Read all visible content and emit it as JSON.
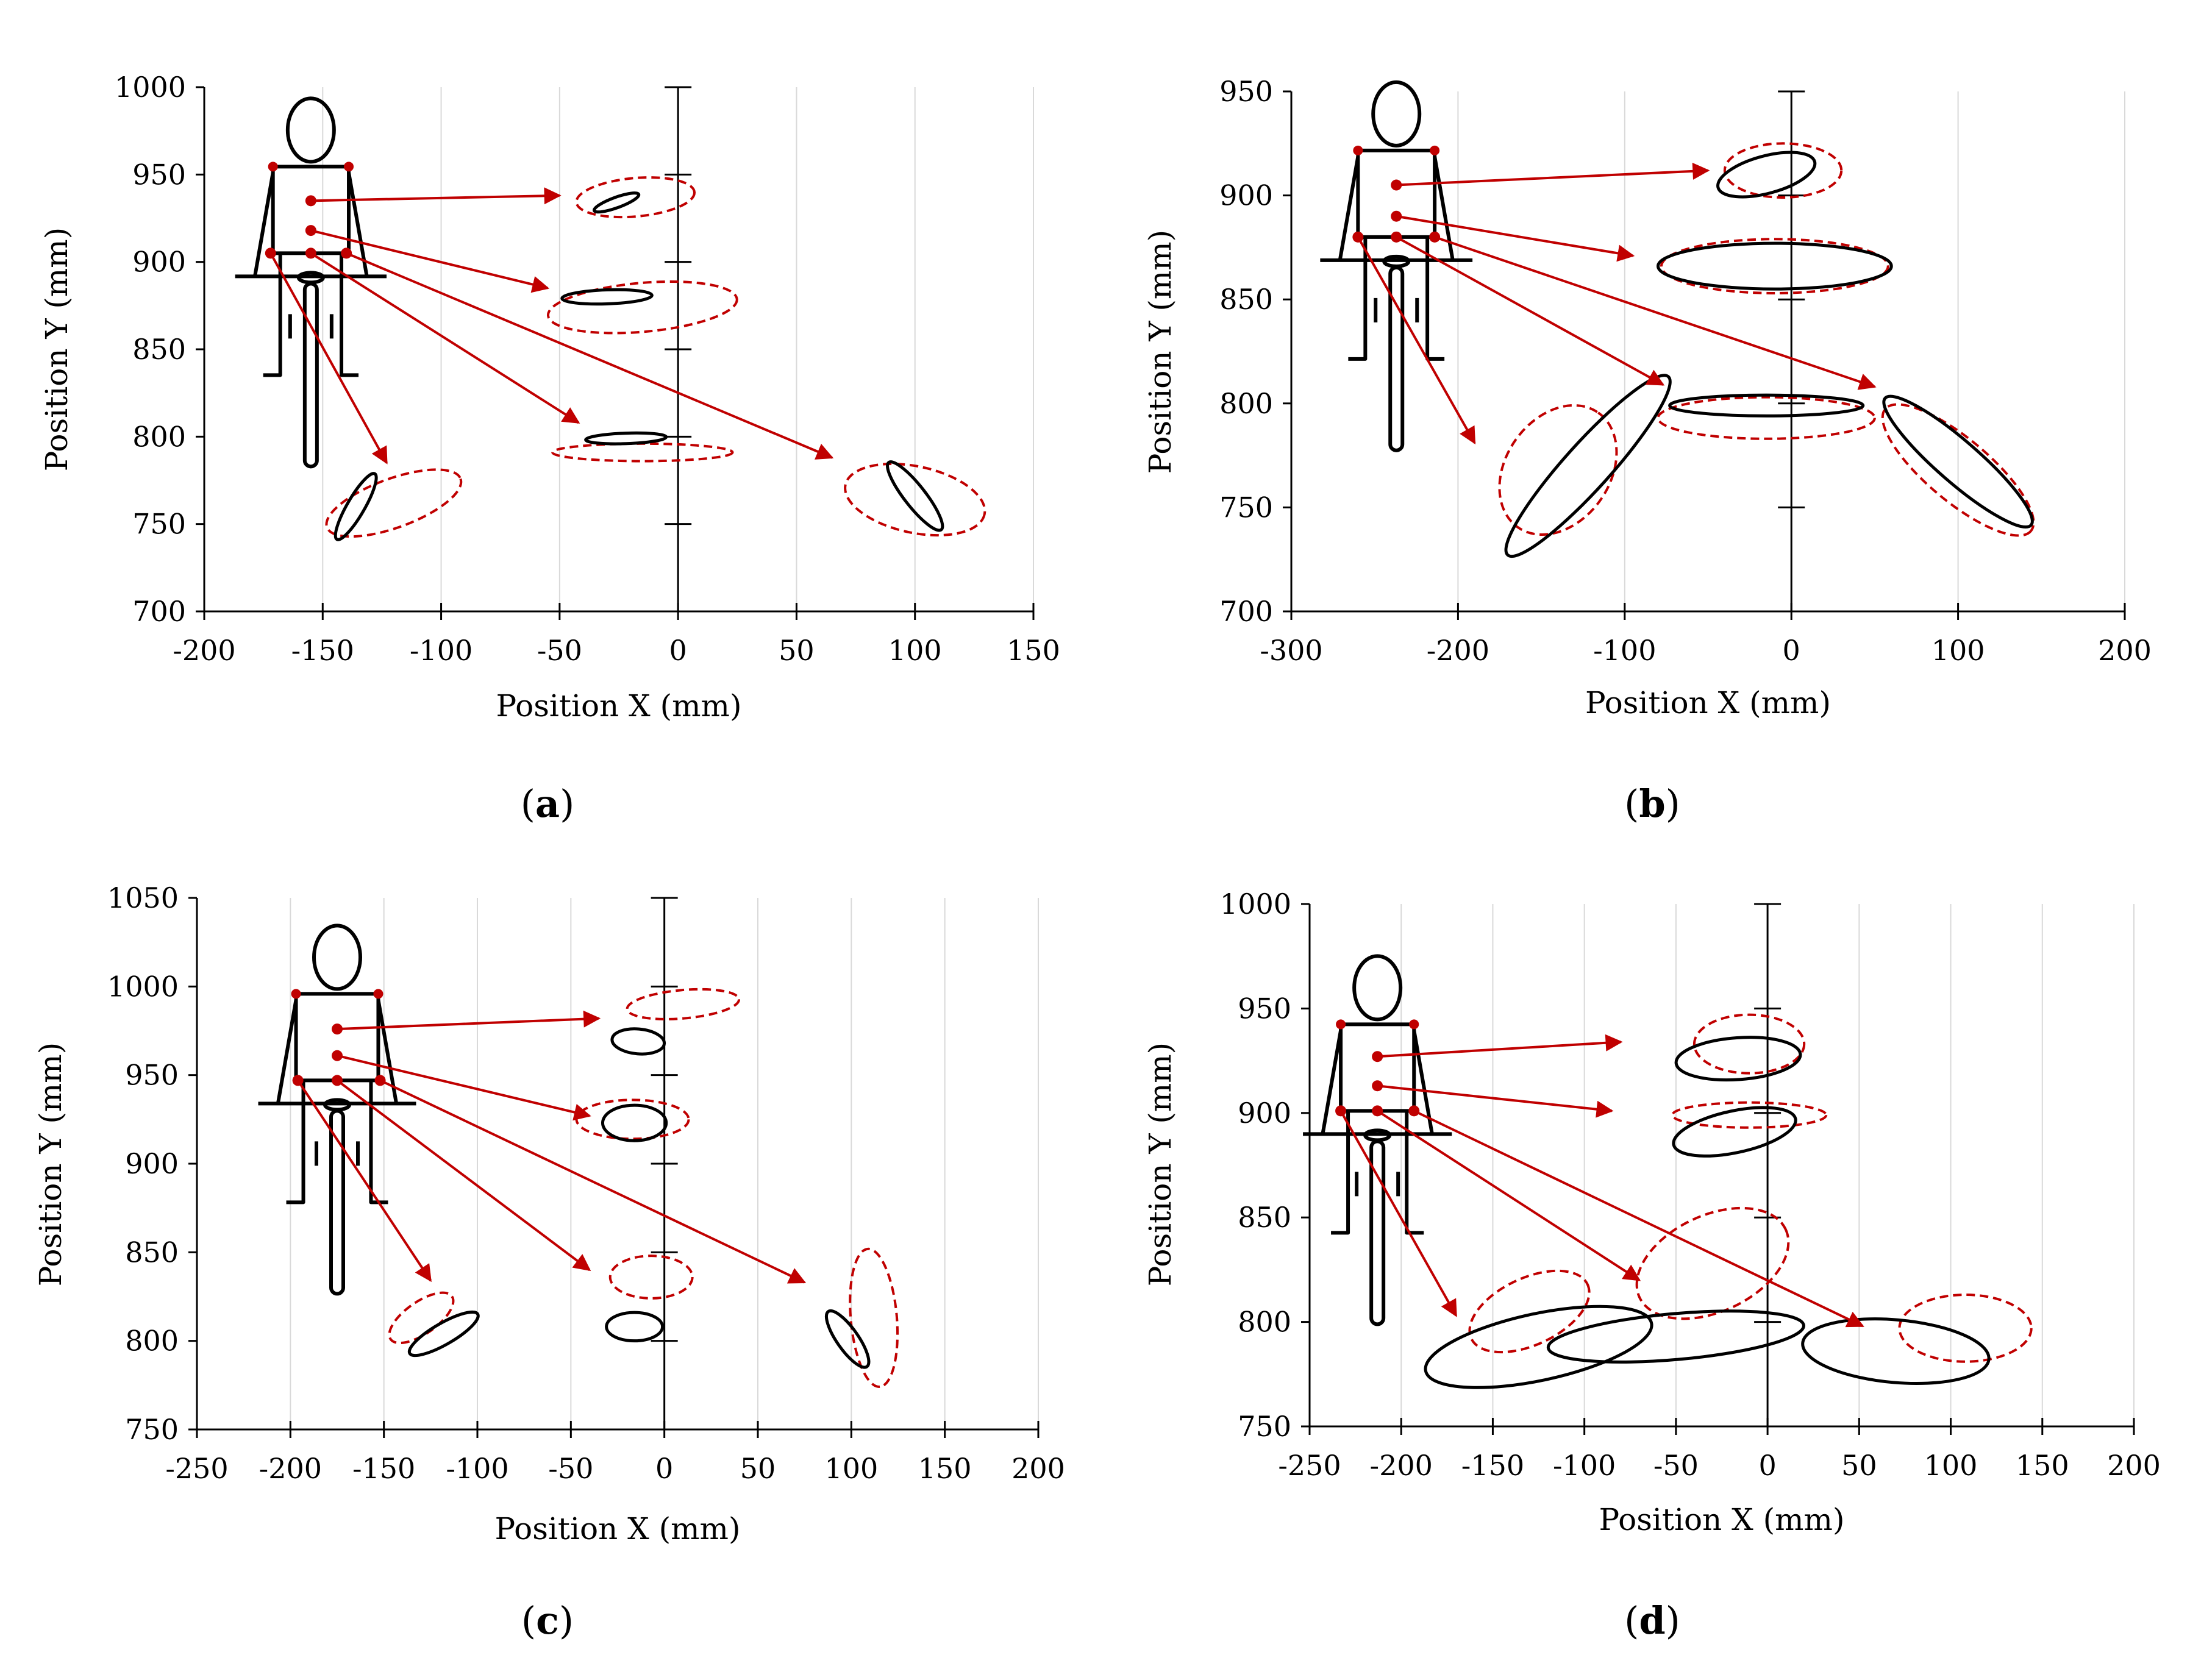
{
  "figure": {
    "colors": {
      "measured": "#000000",
      "predicted": "#c00000",
      "grid": "#d9d9d9",
      "axis": "#000000"
    },
    "icon_names": [
      "cyclist-icon"
    ]
  },
  "chart_data": [
    {
      "type": "scatter",
      "panel": "a",
      "label_prefix": "(",
      "label_letter": "a",
      "label_suffix": ")",
      "xlabel": "Position X (mm)",
      "ylabel": "Position Y (mm)",
      "xlim": [
        -200,
        150
      ],
      "ylim": [
        700,
        1000
      ],
      "xticks": [
        -200,
        -150,
        -100,
        -50,
        0,
        50,
        100,
        150
      ],
      "yticks": [
        700,
        750,
        800,
        850,
        900,
        950,
        1000
      ],
      "xtick_labels": [
        "-200",
        "-150",
        "-100",
        "-50",
        "0",
        "50",
        "100",
        "150"
      ],
      "ytick_labels": [
        "700",
        "750",
        "800",
        "850",
        "900",
        "950",
        "1000"
      ],
      "grid": "vertical",
      "markers": [
        {
          "name": "neck",
          "x": -155,
          "y": 935,
          "target": [
            -50,
            938
          ]
        },
        {
          "name": "mid-back",
          "x": -155,
          "y": 918,
          "target": [
            -55,
            885
          ]
        },
        {
          "name": "left-pelvis",
          "x": -172,
          "y": 905,
          "target": [
            -123,
            785
          ]
        },
        {
          "name": "center-pelvis",
          "x": -155,
          "y": 905,
          "target": [
            -42,
            808
          ]
        },
        {
          "name": "right-pelvis",
          "x": -140,
          "y": 905,
          "target": [
            65,
            788
          ]
        }
      ],
      "measured_ellipses": [
        {
          "cx": -26,
          "cy": 934,
          "rx": 10,
          "ry": 3,
          "angle": 20
        },
        {
          "cx": -30,
          "cy": 880,
          "rx": 19,
          "ry": 4,
          "angle": 2
        },
        {
          "cx": -136,
          "cy": 760,
          "rx": 16,
          "ry": 5,
          "angle": 60
        },
        {
          "cx": -22,
          "cy": 799,
          "rx": 17,
          "ry": 3,
          "angle": 2
        },
        {
          "cx": 100,
          "cy": 766,
          "rx": 18,
          "ry": 6,
          "angle": -52
        }
      ],
      "predicted_ellipses": [
        {
          "cx": -18,
          "cy": 937,
          "rx": 25,
          "ry": 11,
          "angle": 5
        },
        {
          "cx": -15,
          "cy": 874,
          "rx": 40,
          "ry": 14,
          "angle": 5
        },
        {
          "cx": -120,
          "cy": 762,
          "rx": 30,
          "ry": 14,
          "angle": 20
        },
        {
          "cx": -15,
          "cy": 791,
          "rx": 38,
          "ry": 5,
          "angle": 0
        },
        {
          "cx": 100,
          "cy": 764,
          "rx": 30,
          "ry": 19,
          "angle": -12
        }
      ]
    },
    {
      "type": "scatter",
      "panel": "b",
      "label_prefix": "(",
      "label_letter": "b",
      "label_suffix": ")",
      "xlabel": "Position X (mm)",
      "ylabel": "Position Y (mm)",
      "xlim": [
        -300,
        200
      ],
      "ylim": [
        700,
        950
      ],
      "xticks": [
        -300,
        -200,
        -100,
        0,
        100,
        200
      ],
      "yticks": [
        700,
        750,
        800,
        850,
        900,
        950
      ],
      "xtick_labels": [
        "-300",
        "-200",
        "-100",
        "0",
        "100",
        "200"
      ],
      "ytick_labels": [
        "700",
        "750",
        "800",
        "850",
        "900",
        "950"
      ],
      "grid": "vertical",
      "markers": [
        {
          "name": "neck",
          "x": -237,
          "y": 905,
          "target": [
            -50,
            912
          ]
        },
        {
          "name": "mid-back",
          "x": -237,
          "y": 890,
          "target": [
            -95,
            871
          ]
        },
        {
          "name": "left-pelvis",
          "x": -260,
          "y": 880,
          "target": [
            -190,
            781
          ]
        },
        {
          "name": "center-pelvis",
          "x": -237,
          "y": 880,
          "target": [
            -77,
            809
          ]
        },
        {
          "name": "right-pelvis",
          "x": -214,
          "y": 880,
          "target": [
            50,
            808
          ]
        }
      ],
      "measured_ellipses": [
        {
          "cx": -15,
          "cy": 910,
          "rx": 30,
          "ry": 9,
          "angle": 15
        },
        {
          "cx": -10,
          "cy": 866,
          "rx": 70,
          "ry": 11,
          "angle": 0
        },
        {
          "cx": -122,
          "cy": 770,
          "rx": 72,
          "ry": 11,
          "angle": 48
        },
        {
          "cx": -15,
          "cy": 799,
          "rx": 58,
          "ry": 5,
          "angle": 0
        },
        {
          "cx": 100,
          "cy": 772,
          "rx": 58,
          "ry": 10,
          "angle": -41
        }
      ],
      "predicted_ellipses": [
        {
          "cx": -5,
          "cy": 912,
          "rx": 35,
          "ry": 13,
          "angle": 0
        },
        {
          "cx": -10,
          "cy": 866,
          "rx": 68,
          "ry": 13,
          "angle": 0
        },
        {
          "cx": -140,
          "cy": 768,
          "rx": 42,
          "ry": 25,
          "angle": 55
        },
        {
          "cx": -15,
          "cy": 793,
          "rx": 65,
          "ry": 10,
          "angle": 0
        },
        {
          "cx": 100,
          "cy": 768,
          "rx": 57,
          "ry": 15,
          "angle": -40
        }
      ]
    },
    {
      "type": "scatter",
      "panel": "c",
      "label_prefix": "(",
      "label_letter": "c",
      "label_suffix": ")",
      "xlabel": "Position X (mm)",
      "ylabel": "Position Y (mm)",
      "xlim": [
        -250,
        200
      ],
      "ylim": [
        750,
        1050
      ],
      "xticks": [
        -250,
        -200,
        -150,
        -100,
        -50,
        0,
        50,
        100,
        150,
        200
      ],
      "yticks": [
        750,
        800,
        850,
        900,
        950,
        1000,
        1050
      ],
      "xtick_labels": [
        "-250",
        "-200",
        "-150",
        "-100",
        "-50",
        "0",
        "50",
        "100",
        "150",
        "200"
      ],
      "ytick_labels": [
        "750",
        "800",
        "850",
        "900",
        "950",
        "1000",
        "1050"
      ],
      "grid": "vertical",
      "markers": [
        {
          "name": "neck",
          "x": -175,
          "y": 976,
          "target": [
            -35,
            982
          ]
        },
        {
          "name": "mid-back",
          "x": -175,
          "y": 961,
          "target": [
            -40,
            927
          ]
        },
        {
          "name": "left-pelvis",
          "x": -196,
          "y": 947,
          "target": [
            -125,
            834
          ]
        },
        {
          "name": "center-pelvis",
          "x": -175,
          "y": 947,
          "target": [
            -40,
            840
          ]
        },
        {
          "name": "right-pelvis",
          "x": -152,
          "y": 947,
          "target": [
            75,
            833
          ]
        }
      ],
      "measured_ellipses": [
        {
          "cx": -14,
          "cy": 969,
          "rx": 14,
          "ry": 7,
          "angle": -5
        },
        {
          "cx": -16,
          "cy": 923,
          "rx": 17,
          "ry": 10,
          "angle": 0
        },
        {
          "cx": -118,
          "cy": 804,
          "rx": 21,
          "ry": 6,
          "angle": 30
        },
        {
          "cx": -16,
          "cy": 808,
          "rx": 15,
          "ry": 8,
          "angle": 0
        },
        {
          "cx": 98,
          "cy": 801,
          "rx": 18,
          "ry": 6,
          "angle": -55
        }
      ],
      "predicted_ellipses": [
        {
          "cx": 10,
          "cy": 990,
          "rx": 30,
          "ry": 8,
          "angle": 5
        },
        {
          "cx": -17,
          "cy": 925,
          "rx": 30,
          "ry": 11,
          "angle": 0
        },
        {
          "cx": -130,
          "cy": 813,
          "rx": 20,
          "ry": 9,
          "angle": 35
        },
        {
          "cx": -7,
          "cy": 836,
          "rx": 22,
          "ry": 12,
          "angle": 0
        },
        {
          "cx": 112,
          "cy": 813,
          "rx": 37,
          "ry": 13,
          "angle": -85
        }
      ]
    },
    {
      "type": "scatter",
      "panel": "d",
      "label_prefix": "(",
      "label_letter": "d",
      "label_suffix": ")",
      "xlabel": "Position X (mm)",
      "ylabel": "Position Y (mm)",
      "xlim": [
        -250,
        200
      ],
      "ylim": [
        750,
        1000
      ],
      "xticks": [
        -250,
        -200,
        -150,
        -100,
        -50,
        0,
        50,
        100,
        150,
        200
      ],
      "yticks": [
        750,
        800,
        850,
        900,
        950,
        1000
      ],
      "xtick_labels": [
        "-250",
        "-200",
        "-150",
        "-100",
        "-50",
        "0",
        "50",
        "100",
        "150",
        "200"
      ],
      "ytick_labels": [
        "750",
        "800",
        "850",
        "900",
        "950",
        "1000"
      ],
      "grid": "vertical",
      "markers": [
        {
          "name": "neck",
          "x": -213,
          "y": 927,
          "target": [
            -80,
            934
          ]
        },
        {
          "name": "mid-back",
          "x": -213,
          "y": 913,
          "target": [
            -85,
            901
          ]
        },
        {
          "name": "left-pelvis",
          "x": -233,
          "y": 901,
          "target": [
            -170,
            803
          ]
        },
        {
          "name": "center-pelvis",
          "x": -213,
          "y": 901,
          "target": [
            -70,
            820
          ]
        },
        {
          "name": "right-pelvis",
          "x": -193,
          "y": 901,
          "target": [
            52,
            798
          ]
        }
      ],
      "measured_ellipses": [
        {
          "cx": -16,
          "cy": 926,
          "rx": 34,
          "ry": 10,
          "angle": 4
        },
        {
          "cx": -18,
          "cy": 891,
          "rx": 34,
          "ry": 10,
          "angle": 12
        },
        {
          "cx": -125,
          "cy": 788,
          "rx": 63,
          "ry": 16,
          "angle": 12
        },
        {
          "cx": -50,
          "cy": 793,
          "rx": 70,
          "ry": 11,
          "angle": 5
        },
        {
          "cx": 70,
          "cy": 786,
          "rx": 51,
          "ry": 15,
          "angle": -5
        }
      ],
      "predicted_ellipses": [
        {
          "cx": -10,
          "cy": 933,
          "rx": 30,
          "ry": 14,
          "angle": 0
        },
        {
          "cx": -10,
          "cy": 899,
          "rx": 42,
          "ry": 6,
          "angle": 0
        },
        {
          "cx": -130,
          "cy": 805,
          "rx": 35,
          "ry": 16,
          "angle": 25
        },
        {
          "cx": -30,
          "cy": 828,
          "rx": 44,
          "ry": 23,
          "angle": 25
        },
        {
          "cx": 108,
          "cy": 797,
          "rx": 36,
          "ry": 16,
          "angle": 0
        }
      ]
    }
  ]
}
